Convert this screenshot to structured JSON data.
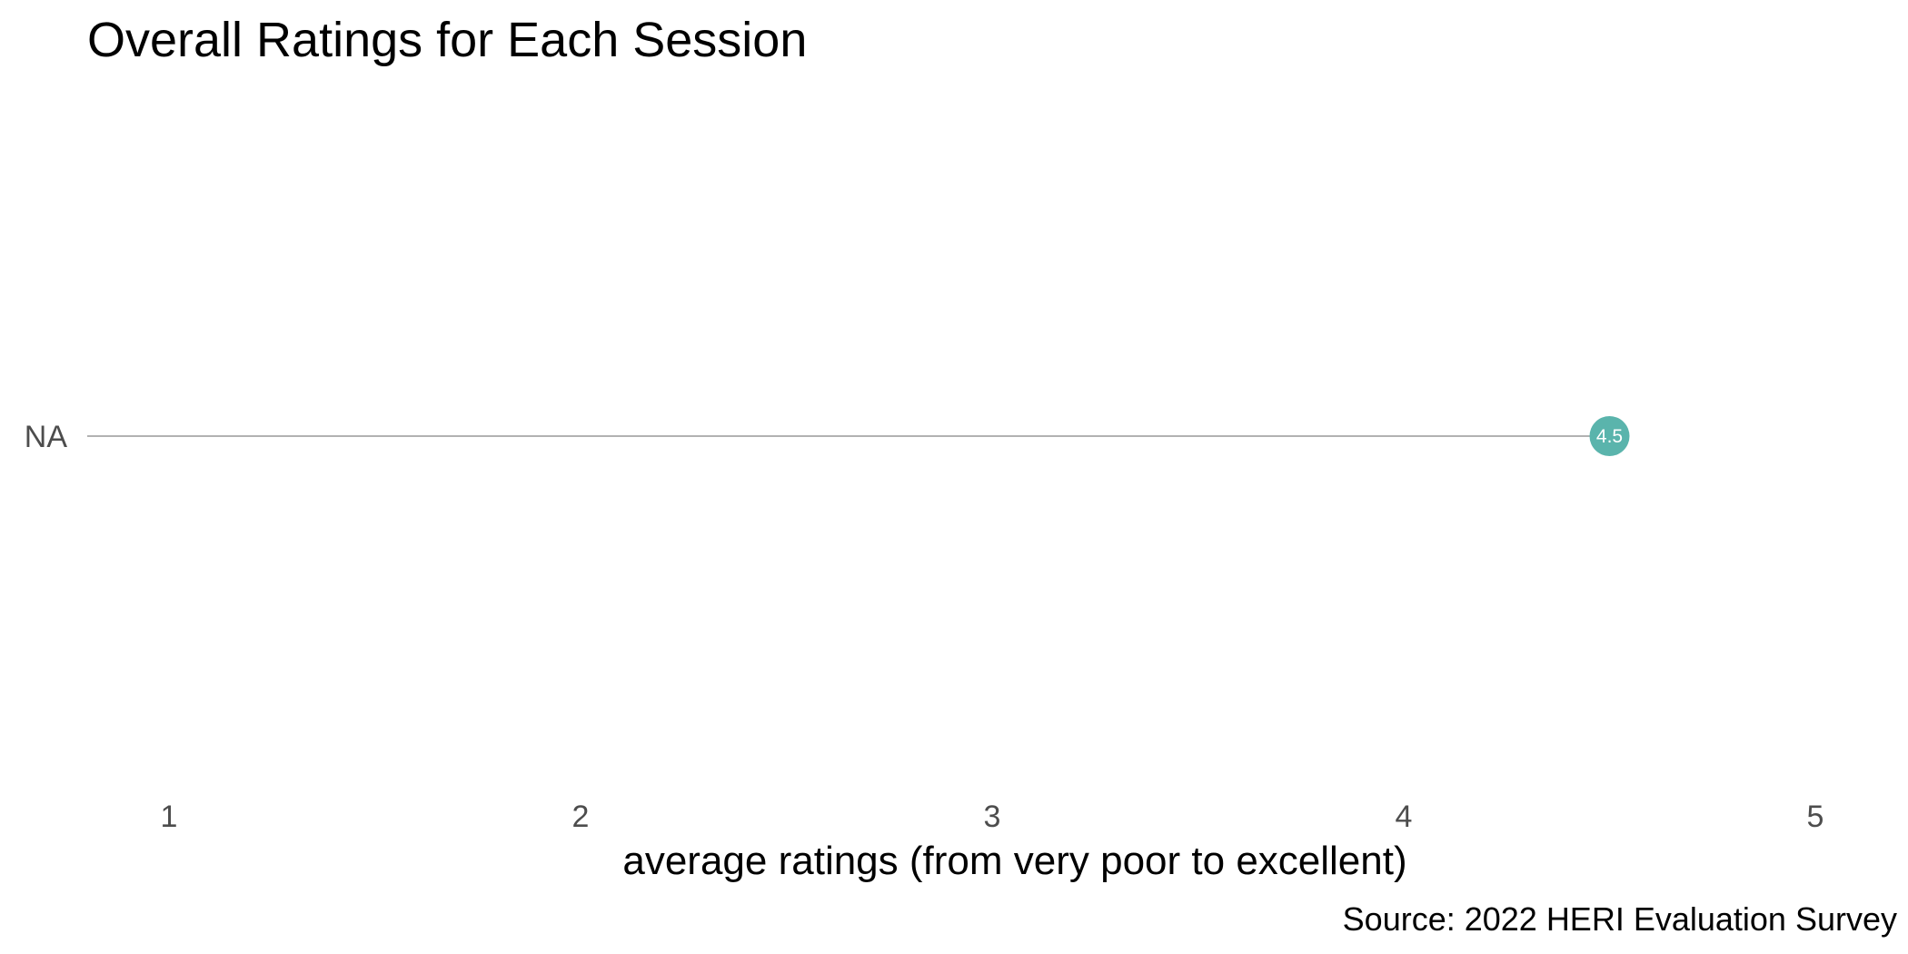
{
  "chart_data": {
    "type": "lollipop",
    "title": "Overall Ratings for Each Session",
    "xlabel": "average ratings (from very poor to excellent)",
    "ylabel": "",
    "caption": "Source: 2022 HERI Evaluation Survey",
    "xlim": [
      0.8,
      5.2
    ],
    "x_ticks": [
      1,
      2,
      3,
      4,
      5
    ],
    "grid": false,
    "categories": [
      "NA"
    ],
    "values": [
      4.5
    ],
    "value_labels": [
      "4.5"
    ],
    "colors": {
      "point": "#5ab4ac",
      "segment": "#999999",
      "point_label": "#ffffff",
      "tick_label": "#4d4d4d"
    }
  }
}
